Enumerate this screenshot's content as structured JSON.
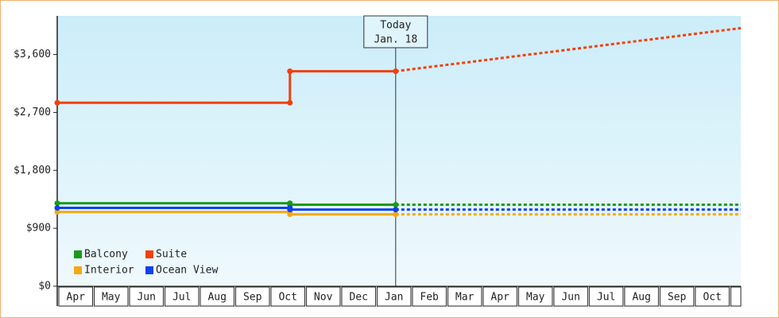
{
  "chart_data": {
    "type": "line",
    "categories": [
      "Apr",
      "May",
      "Jun",
      "Jul",
      "Aug",
      "Sep",
      "Oct",
      "Nov",
      "Dec",
      "Jan",
      "Feb",
      "Mar",
      "Apr",
      "May",
      "Jun",
      "Jul",
      "Aug",
      "Sep",
      "Oct",
      null
    ],
    "xlim": [
      0,
      19.33
    ],
    "ylim": [
      0,
      4200
    ],
    "yticks": [
      {
        "value": 0,
        "label": "$0"
      },
      {
        "value": 900,
        "label": "$900"
      },
      {
        "value": 1800,
        "label": "$1,800"
      },
      {
        "value": 2700,
        "label": "$2,700"
      },
      {
        "value": 3600,
        "label": "$3,600"
      }
    ],
    "today": {
      "x": 9.57,
      "label": [
        "Today",
        "Jan. 18"
      ]
    },
    "series": [
      {
        "name": "Balcony",
        "color": "#1a9a1a",
        "x": [
          0,
          6.58,
          6.58,
          9.57
        ],
        "values": [
          1290,
          1290,
          1266,
          1266
        ],
        "forecast": {
          "x": [
            9.57,
            19.33
          ],
          "values": [
            1266,
            1266
          ]
        }
      },
      {
        "name": "Suite",
        "color": "#f04010",
        "x": [
          0,
          6.58,
          6.58,
          9.57
        ],
        "values": [
          2850,
          2850,
          3340,
          3340
        ],
        "forecast": {
          "x": [
            9.57,
            19.33
          ],
          "values": [
            3340,
            4010
          ]
        }
      },
      {
        "name": "Interior",
        "color": "#f5a814",
        "x": [
          0,
          6.58,
          6.58,
          9.57
        ],
        "values": [
          1154,
          1154,
          1117,
          1117
        ],
        "forecast": {
          "x": [
            9.57,
            19.33
          ],
          "values": [
            1117,
            1117
          ]
        }
      },
      {
        "name": "Ocean View",
        "color": "#1040f0",
        "x": [
          0,
          6.58,
          6.58,
          9.57
        ],
        "values": [
          1216,
          1216,
          1190,
          1190
        ],
        "forecast": {
          "x": [
            9.57,
            19.33
          ],
          "values": [
            1190,
            1190
          ]
        }
      }
    ]
  }
}
